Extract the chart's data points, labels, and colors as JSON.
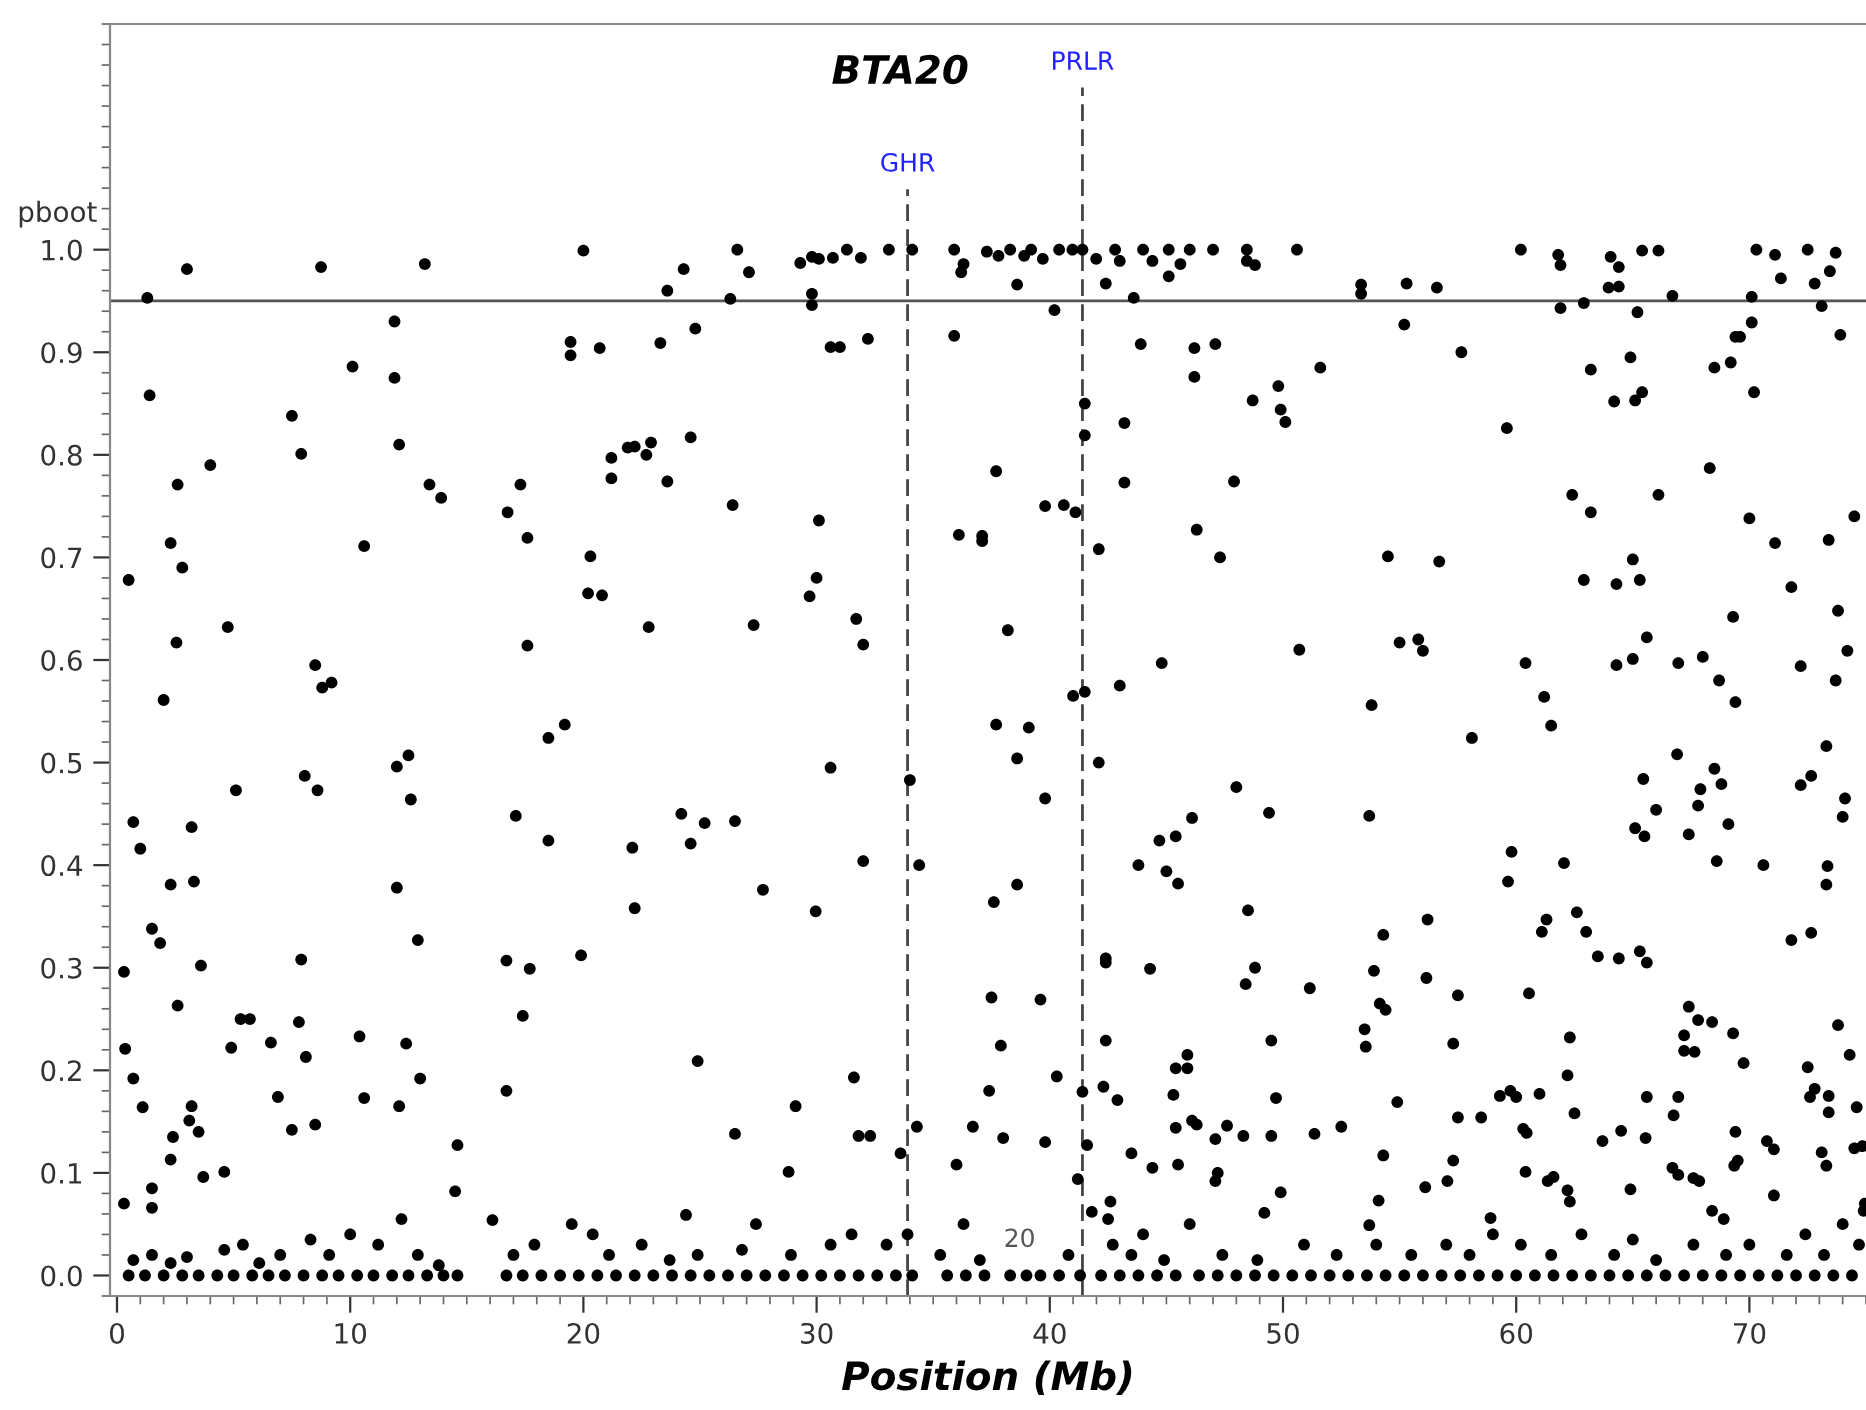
{
  "chart_data": {
    "type": "scatter",
    "title": "BTA20",
    "xlabel": "Position (Mb)",
    "ylabel": "pboot",
    "xlim": [
      -0.3,
      75.0
    ],
    "ylim": [
      -0.02,
      1.22
    ],
    "xticks": [
      0,
      10,
      20,
      30,
      40,
      50,
      60,
      70
    ],
    "yticks": [
      {
        "value": 0,
        "label": "0.0"
      },
      {
        "value": 0.1,
        "label": "0.1"
      },
      {
        "value": 0.2,
        "label": "0.2"
      },
      {
        "value": 0.3,
        "label": "0.3"
      },
      {
        "value": 0.4,
        "label": "0.4"
      },
      {
        "value": 0.5,
        "label": "0.5"
      },
      {
        "value": 0.6,
        "label": "0.6"
      },
      {
        "value": 0.7,
        "label": "0.7"
      },
      {
        "value": 0.8,
        "label": "0.8"
      },
      {
        "value": 0.9,
        "label": "0.9"
      },
      {
        "value": 1.0,
        "label": "1.0"
      }
    ],
    "grid": false,
    "legend": false,
    "marker": "circle",
    "ref_lines": [
      {
        "axis": "y",
        "value": 0.95,
        "label": null,
        "color": "#555555",
        "line_style": "solid"
      },
      {
        "axis": "x",
        "value": 33.9,
        "label": "GHR",
        "color": "#444444",
        "line_style": "dashed"
      },
      {
        "axis": "x",
        "value": 41.4,
        "label": "PRLR",
        "color": "#444444",
        "line_style": "dashed"
      }
    ],
    "annotations": [
      "20"
    ],
    "series": [
      {
        "color": "#000000",
        "x": [
          0.3,
          0.35,
          0.5,
          0.7,
          0.7,
          1.0,
          1.1,
          1.3,
          1.4,
          1.5,
          1.85,
          2.0,
          2.3,
          2.3,
          2.55,
          2.6,
          2.6,
          2.8,
          3.0,
          3.2,
          3.3,
          3.6,
          4.0,
          4.75,
          5.1,
          5.3,
          5.7,
          7.5,
          7.9,
          7.9,
          8.05,
          8.5,
          8.6,
          8.75,
          8.8,
          9.2,
          10.1,
          10.4,
          10.6,
          11.9,
          11.9,
          12.1,
          12.0,
          12.0,
          12.5,
          12.6,
          12.9,
          13.2,
          13.4,
          13.9,
          16.75,
          17.3,
          17.6,
          17.6,
          17.1,
          16.7,
          17.4,
          17.7,
          18.5,
          19.2,
          18.5,
          19.45,
          19.45,
          20.0,
          19.9,
          20.3,
          20.2,
          20.7,
          20.8,
          21.2,
          21.2,
          21.9,
          22.1,
          22.2
        ],
        "values": [
          0.296,
          0.221,
          0.678,
          0.442,
          0.192,
          0.416,
          0.164,
          0.953,
          0.858,
          0.338,
          0.324,
          0.561,
          0.714,
          0.381,
          0.617,
          0.771,
          0.263,
          0.69,
          0.981,
          0.437,
          0.384,
          0.302,
          0.79,
          0.632,
          0.473,
          0.25,
          0.25,
          0.838,
          0.801,
          0.308,
          0.487,
          0.595,
          0.473,
          0.983,
          0.573,
          0.578,
          0.886,
          0.233,
          0.711,
          0.875,
          0.93,
          0.81,
          0.496,
          0.378,
          0.507,
          0.464,
          0.327,
          0.986,
          0.771,
          0.758,
          0.744,
          0.771,
          0.719,
          0.614,
          0.448,
          0.307,
          0.253,
          0.299,
          0.524,
          0.537,
          0.424,
          0.91,
          0.897,
          0.999,
          0.312,
          0.701,
          0.665,
          0.904,
          0.663,
          0.777,
          0.797,
          0.807,
          0.417,
          0.358
        ]
      },
      {
        "color": "#000000",
        "x": [
          0.3,
          1.5,
          1.5,
          2.3,
          2.4,
          3.2,
          3.1,
          3.5,
          3.7,
          4.6,
          4.9,
          6.6,
          6.9,
          7.5,
          7.8,
          8.1,
          8.5,
          10.6,
          12.1,
          12.4,
          13.0,
          14.6,
          14.5,
          16.1,
          16.7
        ],
        "values": [
          0.07,
          0.085,
          0.066,
          0.113,
          0.135,
          0.165,
          0.151,
          0.14,
          0.096,
          0.101,
          0.222,
          0.227,
          0.174,
          0.142,
          0.247,
          0.213,
          0.147,
          0.173,
          0.165,
          0.226,
          0.192,
          0.127,
          0.082,
          0.054,
          0.18
        ]
      },
      {
        "color": "#000000",
        "x": [
          26.6,
          27.1,
          26.3,
          24.3,
          23.6,
          23.3,
          24.8,
          22.9,
          22.7,
          22.2,
          24.6,
          23.6,
          26.4,
          22.8,
          27.3,
          29.3,
          29.8,
          29.8,
          29.8,
          30.1,
          30.7,
          31.3,
          31.9,
          33.1,
          34.1,
          30.6,
          31.0,
          32.2,
          30.1,
          30.0,
          29.7,
          31.7,
          32.0,
          30.6,
          34.0,
          34.4,
          32.0,
          29.96,
          26.5,
          25.2,
          24.6,
          24.2,
          27.7,
          24.9,
          26.5,
          29.1,
          31.6,
          31.8,
          32.3,
          33.6,
          34.3,
          28.8,
          24.4
        ],
        "values": [
          1.0,
          0.978,
          0.952,
          0.981,
          0.96,
          0.909,
          0.923,
          0.812,
          0.8,
          0.808,
          0.817,
          0.774,
          0.751,
          0.632,
          0.634,
          0.987,
          0.993,
          0.957,
          0.946,
          0.991,
          0.992,
          1.0,
          0.992,
          1.0,
          1.0,
          0.905,
          0.905,
          0.913,
          0.736,
          0.68,
          0.662,
          0.64,
          0.615,
          0.495,
          0.483,
          0.4,
          0.404,
          0.355,
          0.443,
          0.441,
          0.421,
          0.45,
          0.376,
          0.209,
          0.138,
          0.165,
          0.193,
          0.136,
          0.136,
          0.119,
          0.145,
          0.101,
          0.059
        ]
      },
      {
        "color": "#000000",
        "x": [
          35.9,
          36.3,
          36.2,
          37.3,
          37.8,
          38.3,
          38.6,
          38.9,
          39.2,
          39.7,
          40.2,
          40.4,
          40.97,
          41.4,
          41.99,
          42.4,
          42.8,
          43.0,
          43.6,
          44.0,
          44.4,
          35.9,
          41.5,
          41.5,
          42.1,
          43.2,
          43.2,
          43.9,
          37.7,
          39.8,
          40.6,
          41.1,
          36.1,
          37.1,
          37.1,
          38.2,
          41.0,
          41.5,
          43.0,
          44.8,
          37.7,
          39.1,
          38.6,
          42.1,
          39.8,
          37.6,
          38.6,
          43.8,
          44.7,
          45.0,
          45.5,
          42.4,
          42.4,
          37.5,
          39.6,
          37.9,
          44.3,
          42.4,
          40.3,
          41.4,
          42.3,
          42.9,
          37.4,
          36.7,
          38.0,
          39.8,
          41.6,
          36.0,
          41.2,
          42.5,
          41.8,
          42.6,
          45.3,
          45.4,
          45.9,
          45.9,
          45.4,
          45.5,
          43.5,
          44.4
        ],
        "values": [
          1.0,
          0.986,
          0.978,
          0.998,
          0.994,
          1.0,
          0.966,
          0.994,
          1.0,
          0.991,
          0.941,
          1.0,
          1.0,
          1.0,
          0.991,
          0.967,
          1.0,
          0.989,
          0.953,
          1.0,
          0.989,
          0.916,
          0.85,
          0.819,
          0.708,
          0.831,
          0.773,
          0.908,
          0.784,
          0.75,
          0.751,
          0.744,
          0.722,
          0.721,
          0.716,
          0.629,
          0.565,
          0.569,
          0.575,
          0.597,
          0.537,
          0.534,
          0.504,
          0.5,
          0.465,
          0.364,
          0.381,
          0.4,
          0.424,
          0.394,
          0.382,
          0.309,
          0.305,
          0.271,
          0.269,
          0.224,
          0.299,
          0.229,
          0.194,
          0.179,
          0.184,
          0.171,
          0.18,
          0.145,
          0.134,
          0.13,
          0.127,
          0.108,
          0.094,
          0.055,
          0.062,
          0.072,
          0.176,
          0.202,
          0.215,
          0.202,
          0.144,
          0.108,
          0.119,
          0.105
        ]
      },
      {
        "color": "#000000",
        "x": [
          47.9,
          46.2,
          46.2,
          47.1,
          48.7,
          46.3,
          47.3,
          48.0,
          48.5,
          48.8,
          48.4,
          45.1,
          45.6,
          46.0,
          47.0,
          48.45,
          48.45,
          48.8,
          45.1,
          46.1,
          45.4,
          46.1,
          46.3,
          47.2
        ],
        "values": [
          0.774,
          0.876,
          0.904,
          0.908,
          0.853,
          0.727,
          0.7,
          0.476,
          0.356,
          0.3,
          0.284,
          1.0,
          0.986,
          1.0,
          1.0,
          1.0,
          0.989,
          0.985,
          0.974,
          0.446,
          0.428,
          0.151,
          0.147,
          0.1
        ]
      },
      {
        "color": "#000000",
        "x": [
          50.6,
          51.6,
          53.35,
          53.35,
          55.3,
          56.6,
          55.2,
          57.65,
          60.2,
          61.8,
          61.9,
          61.9,
          62.9,
          64.05,
          64.4,
          63.96,
          64.4,
          65.4,
          66.1,
          66.7,
          65.2,
          70.3,
          71.1,
          72.5,
          73.7,
          71.35,
          72.8,
          73.45,
          70.1,
          73.1,
          73.9,
          70.1,
          69.4,
          69.6,
          68.5,
          69.2,
          70.2,
          49.8,
          49.9,
          50.1,
          63.2,
          64.9,
          64.2,
          65.1,
          65.4,
          59.6,
          62.4,
          63.2,
          66.1,
          68.3,
          70.0,
          71.1,
          73.4,
          74.5,
          54.5,
          56.7,
          62.9,
          64.3,
          65.0,
          65.3,
          71.8,
          69.3,
          73.8,
          65.6,
          50.7,
          55.0,
          55.8,
          56.0,
          60.4,
          64.3,
          65.0,
          66.95,
          68.0,
          68.7,
          69.4,
          72.2,
          73.7,
          74.2,
          53.8,
          61.2,
          61.5,
          58.1,
          66.9,
          73.3
        ],
        "values": [
          1.0,
          0.885,
          0.966,
          0.957,
          0.967,
          0.963,
          0.927,
          0.9,
          1.0,
          0.995,
          0.985,
          0.943,
          0.948,
          0.993,
          0.983,
          0.963,
          0.964,
          0.999,
          0.999,
          0.955,
          0.939,
          1.0,
          0.995,
          1.0,
          0.997,
          0.972,
          0.967,
          0.979,
          0.954,
          0.945,
          0.917,
          0.929,
          0.915,
          0.915,
          0.885,
          0.89,
          0.861,
          0.867,
          0.844,
          0.832,
          0.883,
          0.895,
          0.852,
          0.853,
          0.861,
          0.826,
          0.761,
          0.744,
          0.761,
          0.787,
          0.738,
          0.714,
          0.717,
          0.74,
          0.701,
          0.696,
          0.678,
          0.674,
          0.698,
          0.678,
          0.671,
          0.642,
          0.648,
          0.622,
          0.61,
          0.617,
          0.62,
          0.609,
          0.597,
          0.595,
          0.601,
          0.597,
          0.603,
          0.58,
          0.559,
          0.594,
          0.58,
          0.609,
          0.556,
          0.564,
          0.536,
          0.524,
          0.508,
          0.516
        ]
      },
      {
        "color": "#000000",
        "x": [
          65.45,
          67.9,
          68.5,
          68.8,
          66.0,
          67.8,
          69.1,
          65.1,
          65.5,
          67.4,
          72.2,
          72.65,
          74.1,
          74.0,
          49.4,
          53.7,
          59.8,
          59.65,
          62.05,
          68.6,
          70.6,
          73.35,
          73.3,
          54.3,
          53.9,
          54.15,
          54.4,
          56.2,
          56.15,
          61.1,
          61.3,
          62.6,
          63.0,
          63.5,
          64.4,
          65.3,
          65.6,
          71.8,
          72.65,
          51.15,
          53.5,
          53.55,
          57.5,
          57.3,
          60.55,
          62.3,
          62.2,
          62.5,
          67.4,
          67.8,
          68.4,
          67.2,
          67.2,
          67.65,
          69.3,
          69.75,
          73.8,
          74.3,
          72.5,
          72.8,
          72.6,
          73.4,
          73.4,
          74.6,
          49.5,
          49.7
        ],
        "values": [
          0.484,
          0.474,
          0.494,
          0.479,
          0.454,
          0.458,
          0.44,
          0.436,
          0.428,
          0.43,
          0.478,
          0.487,
          0.465,
          0.447,
          0.451,
          0.448,
          0.413,
          0.384,
          0.402,
          0.404,
          0.4,
          0.399,
          0.381,
          0.332,
          0.297,
          0.265,
          0.259,
          0.347,
          0.29,
          0.335,
          0.347,
          0.354,
          0.335,
          0.311,
          0.309,
          0.316,
          0.305,
          0.327,
          0.334,
          0.28,
          0.24,
          0.223,
          0.273,
          0.226,
          0.275,
          0.232,
          0.195,
          0.158,
          0.262,
          0.249,
          0.247,
          0.234,
          0.219,
          0.218,
          0.236,
          0.207,
          0.244,
          0.215,
          0.203,
          0.182,
          0.174,
          0.175,
          0.159,
          0.164,
          0.229,
          0.173
        ]
      },
      {
        "color": "#000000",
        "x": [
          47.6,
          47.1,
          47.1,
          48.3,
          49.5,
          49.9,
          51.35,
          52.5,
          54.9,
          54.3,
          57.5,
          58.5,
          57.3,
          57.05,
          56.1,
          59.3,
          59.75,
          60.0,
          61.0,
          60.3,
          60.45,
          60.4,
          63.7,
          64.5,
          65.55,
          65.6,
          66.95,
          66.75,
          66.7,
          66.95,
          67.6,
          67.85,
          64.9,
          61.35,
          61.6,
          62.2,
          62.3,
          69.4,
          69.35,
          69.5,
          70.75,
          71.05,
          68.4,
          68.9,
          73.1,
          73.3,
          74.5,
          74.85,
          71.05,
          74.9,
          74.95,
          49.2,
          53.7,
          58.9,
          54.1
        ],
        "values": [
          0.146,
          0.133,
          0.092,
          0.136,
          0.136,
          0.081,
          0.138,
          0.145,
          0.169,
          0.117,
          0.154,
          0.154,
          0.112,
          0.092,
          0.086,
          0.175,
          0.18,
          0.174,
          0.177,
          0.143,
          0.139,
          0.101,
          0.131,
          0.141,
          0.134,
          0.174,
          0.174,
          0.156,
          0.105,
          0.098,
          0.095,
          0.092,
          0.084,
          0.092,
          0.096,
          0.083,
          0.072,
          0.14,
          0.107,
          0.112,
          0.131,
          0.123,
          0.063,
          0.055,
          0.12,
          0.107,
          0.124,
          0.126,
          0.078,
          0.063,
          0.07,
          0.061,
          0.049,
          0.056,
          0.073
        ]
      },
      {
        "color": "#000000",
        "x": [
          0.5,
          1.2,
          2.0,
          2.8,
          3.5,
          4.3,
          5.0,
          5.8,
          6.5,
          7.2,
          8.0,
          8.8,
          9.5,
          10.3,
          11.0,
          11.8,
          12.5,
          13.3,
          14.0,
          14.6,
          16.7,
          17.4,
          18.2,
          19.0,
          19.8,
          20.6,
          21.4,
          22.2,
          23.0,
          23.8,
          24.6,
          25.4,
          26.2,
          27.0,
          27.8,
          28.6,
          29.4,
          30.2,
          31.0,
          31.8,
          32.6,
          33.4,
          34.1,
          35.6,
          36.4,
          37.2,
          38.3,
          39.0,
          39.6,
          40.4,
          41.3,
          42.2,
          43.0,
          43.8,
          44.6,
          45.4,
          46.4,
          47.2,
          48.0,
          48.8,
          49.6,
          50.4,
          51.2,
          52.0,
          52.8,
          53.6,
          54.4,
          55.2,
          56.0,
          56.8,
          57.6,
          58.4,
          59.2,
          60.0,
          60.8,
          61.6,
          62.4,
          63.2,
          64.0,
          64.8,
          65.6,
          66.4,
          67.2,
          68.0,
          68.8,
          69.6,
          70.4,
          71.2,
          72.0,
          72.8,
          73.6,
          74.4
        ],
        "values": [
          0,
          0,
          0,
          0,
          0,
          0,
          0,
          0,
          0,
          0,
          0,
          0,
          0,
          0,
          0,
          0,
          0,
          0,
          0,
          0,
          0,
          0,
          0,
          0,
          0,
          0,
          0,
          0,
          0,
          0,
          0,
          0,
          0,
          0,
          0,
          0,
          0,
          0,
          0,
          0,
          0,
          0,
          0,
          0,
          0,
          0,
          0,
          0,
          0,
          0,
          0,
          0,
          0,
          0,
          0,
          0,
          0,
          0,
          0,
          0,
          0,
          0,
          0,
          0,
          0,
          0,
          0,
          0,
          0,
          0,
          0,
          0,
          0,
          0,
          0,
          0,
          0,
          0,
          0,
          0,
          0,
          0,
          0,
          0,
          0,
          0,
          0,
          0,
          0,
          0,
          0,
          0
        ]
      },
      {
        "color": "#000000",
        "x": [
          0.7,
          1.5,
          2.3,
          3.0,
          4.6,
          5.4,
          6.1,
          7.0,
          8.3,
          9.1,
          10.0,
          11.2,
          12.2,
          12.9,
          13.8,
          17.0,
          17.9,
          19.5,
          20.4,
          21.1,
          22.5,
          23.7,
          24.9,
          26.8,
          27.4,
          28.9,
          30.6,
          31.5,
          33.0,
          33.9,
          35.3,
          36.3,
          37.0,
          40.8,
          42.7,
          43.5,
          44.0,
          44.9,
          46.0,
          47.4,
          48.9,
          50.9,
          52.3,
          54.0,
          55.5,
          57.0,
          58.0,
          59.0,
          60.2,
          61.5,
          62.8,
          64.2,
          65.0,
          66.0,
          67.6,
          69.0,
          70.0,
          71.6,
          72.4,
          73.2,
          74.0,
          74.7
        ],
        "values": [
          0.015,
          0.02,
          0.012,
          0.018,
          0.025,
          0.03,
          0.012,
          0.02,
          0.035,
          0.02,
          0.04,
          0.03,
          0.055,
          0.02,
          0.01,
          0.02,
          0.03,
          0.05,
          0.04,
          0.02,
          0.03,
          0.015,
          0.02,
          0.025,
          0.05,
          0.02,
          0.03,
          0.04,
          0.03,
          0.04,
          0.02,
          0.05,
          0.015,
          0.02,
          0.03,
          0.02,
          0.04,
          0.015,
          0.05,
          0.02,
          0.015,
          0.03,
          0.02,
          0.03,
          0.02,
          0.03,
          0.02,
          0.04,
          0.03,
          0.02,
          0.04,
          0.02,
          0.035,
          0.015,
          0.03,
          0.02,
          0.03,
          0.02,
          0.04,
          0.02,
          0.05,
          0.03
        ]
      }
    ]
  }
}
